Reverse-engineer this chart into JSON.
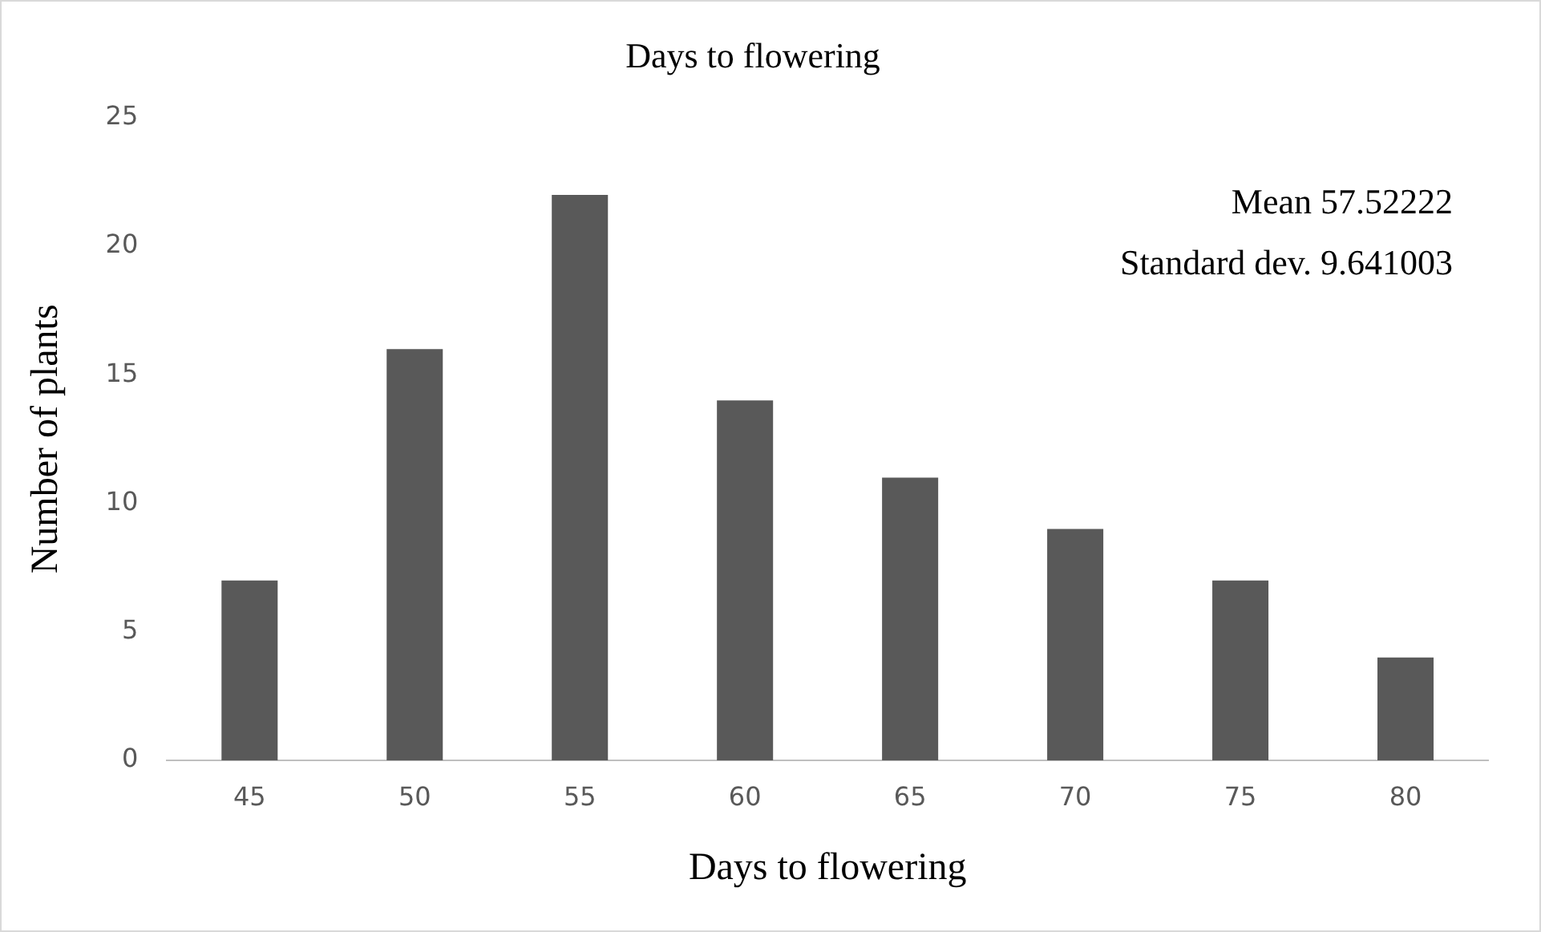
{
  "chart_data": {
    "type": "bar",
    "title": "Days to flowering",
    "xlabel": "Days to flowering",
    "ylabel": "Number of plants",
    "categories": [
      "45",
      "50",
      "55",
      "60",
      "65",
      "70",
      "75",
      "80"
    ],
    "values": [
      7,
      16,
      22,
      14,
      11,
      9,
      7,
      4
    ],
    "color": "#595959",
    "ylim": [
      0,
      25
    ],
    "yticks": [
      0,
      5,
      10,
      15,
      20,
      25
    ],
    "annotations": [
      "Mean 57.52222",
      "Standard dev. 9.641003"
    ]
  }
}
